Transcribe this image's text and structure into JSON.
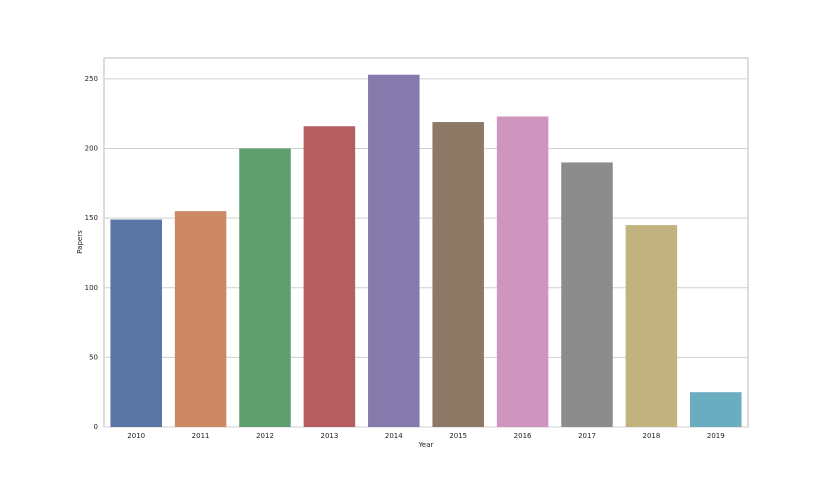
{
  "chart_data": {
    "type": "bar",
    "x_label": "Year",
    "y_label": "Papers",
    "categories": [
      "2010",
      "2011",
      "2012",
      "2013",
      "2014",
      "2015",
      "2016",
      "2017",
      "2018",
      "2019"
    ],
    "values": [
      149,
      155,
      200,
      216,
      253,
      219,
      223,
      190,
      145,
      25
    ],
    "colors": [
      "#5875a4",
      "#cc8963",
      "#5f9e6e",
      "#b55d60",
      "#857aab",
      "#8d7866",
      "#d095bf",
      "#8c8c8c",
      "#c1b37f",
      "#6aacc0"
    ],
    "ylim": [
      0,
      265
    ],
    "yticks": [
      0,
      50,
      100,
      150,
      200,
      250
    ],
    "grid": true
  }
}
